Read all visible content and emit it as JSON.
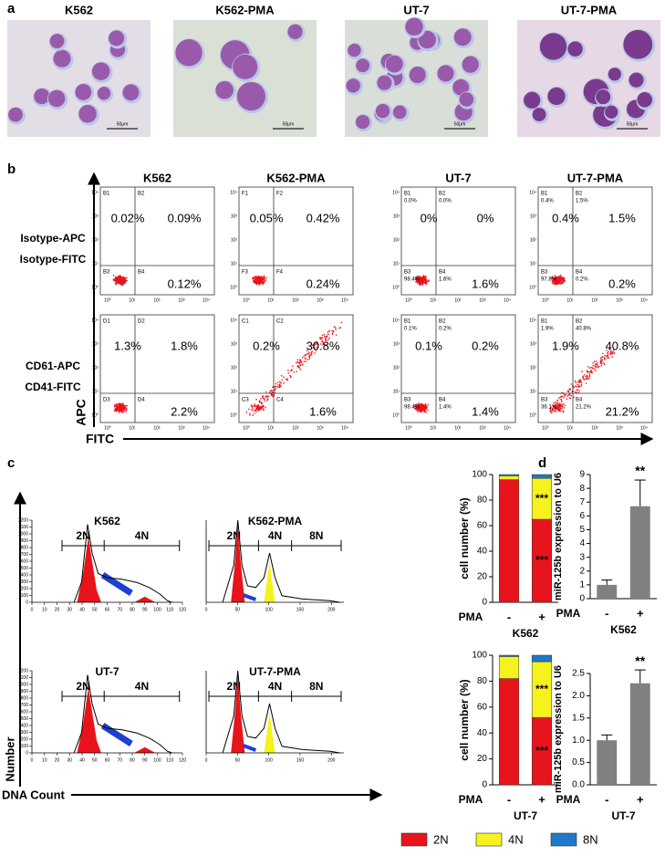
{
  "panel_labels": [
    "a",
    "b",
    "c",
    "d"
  ],
  "micrographs": {
    "titles": [
      "K562",
      "K562-PMA",
      "UT-7",
      "UT-7-PMA"
    ],
    "scale_bar": "50μm"
  },
  "flow": {
    "columns": [
      "K562",
      "K562-PMA",
      "UT-7",
      "UT-7-PMA"
    ],
    "y_axis": "APC",
    "x_axis": "FITC",
    "axis_ticks": [
      "10⁰",
      "10¹",
      "10²",
      "10³",
      "10⁴"
    ],
    "rows": [
      {
        "labels": [
          "Isotype-APC",
          "Isotype-FITC"
        ],
        "plots": [
          {
            "quadrants": [
              "B1",
              "B2",
              "B3",
              "B4"
            ],
            "percents": [
              "0.02%",
              "0.09%",
              "0.12%"
            ]
          },
          {
            "quadrants": [
              "F1",
              "F2",
              "F3",
              "F4"
            ],
            "percents": [
              "0.05%",
              "0.42%",
              "0.24%"
            ]
          },
          {
            "quadrants": [
              "B1",
              "B2",
              "B3",
              "B4"
            ],
            "quadrant_percents": [
              "0.0%",
              "0.0%",
              "98.4%",
              "1.6%"
            ],
            "percents": [
              "0%",
              "0%",
              "1.6%"
            ]
          },
          {
            "quadrants": [
              "B1",
              "B2",
              "B3",
              "B4"
            ],
            "quadrant_percents": [
              "0.4%",
              "1.5%",
              "97.8%",
              "0.2%"
            ],
            "percents": [
              "0.4%",
              "1.5%",
              "0.2%"
            ]
          }
        ]
      },
      {
        "labels": [
          "CD61-APC",
          "CD41-FITC"
        ],
        "plots": [
          {
            "quadrants": [
              "D1",
              "D2",
              "D3",
              "D4"
            ],
            "percents": [
              "1.3%",
              "1.8%",
              "2.2%"
            ]
          },
          {
            "quadrants": [
              "C1",
              "C2",
              "C3",
              "C4"
            ],
            "percents": [
              "0.2%",
              "30.8%",
              "1.6%"
            ]
          },
          {
            "quadrants": [
              "B1",
              "B2",
              "B3",
              "B4"
            ],
            "quadrant_percents": [
              "0.1%",
              "0.2%",
              "98.4%",
              "1.4%"
            ],
            "percents": [
              "0.1%",
              "0.2%",
              "1.4%"
            ]
          },
          {
            "quadrants": [
              "B1",
              "B2",
              "B3",
              "B4"
            ],
            "quadrant_percents": [
              "1.9%",
              "40.8%",
              "36.1%",
              "21.2%"
            ],
            "percents": [
              "1.9%",
              "40.8%",
              "21.2%"
            ]
          }
        ]
      }
    ]
  },
  "cell_cycle": {
    "y_axis": "Number",
    "x_axis": "DNA Count",
    "histograms": [
      {
        "title": "K562",
        "ranges": [
          "2N",
          "4N"
        ],
        "xlim": [
          0,
          120
        ],
        "xticks": [
          0,
          10,
          20,
          30,
          40,
          50,
          60,
          70,
          80,
          90,
          100,
          110,
          120
        ],
        "ylim": [
          0,
          1200
        ],
        "yticks": [
          0,
          100,
          200,
          300,
          400,
          500,
          600,
          700,
          800,
          900,
          1000,
          1100,
          1200
        ]
      },
      {
        "title": "K562-PMA",
        "ranges": [
          "2N",
          "4N",
          "8N"
        ],
        "xlim": [
          0,
          220
        ],
        "xticks": [
          0,
          50,
          100,
          150,
          200
        ]
      },
      {
        "title": "UT-7",
        "ranges": [
          "2N",
          "4N"
        ],
        "xlim": [
          0,
          120
        ],
        "xticks": [
          0,
          10,
          20,
          30,
          40,
          50,
          60,
          70,
          80,
          90,
          100,
          110,
          120
        ],
        "ylim": [
          0,
          1200
        ],
        "yticks": [
          0,
          100,
          200,
          300,
          400,
          500,
          600,
          700,
          800,
          900,
          1000,
          1100,
          1200
        ]
      },
      {
        "title": "UT-7-PMA",
        "ranges": [
          "2N",
          "4N",
          "8N"
        ],
        "xlim": [
          0,
          220
        ],
        "xticks": [
          0,
          50,
          100,
          150,
          200
        ]
      }
    ]
  },
  "chart_data": [
    {
      "type": "stacked_bar",
      "ylabel": "cell number (%)",
      "xlabel": "PMA",
      "subtitle": "K562",
      "categories": [
        "-",
        "+"
      ],
      "ylim": [
        0,
        100
      ],
      "yticks": [
        0,
        20,
        40,
        60,
        80,
        100
      ],
      "series": [
        {
          "name": "2N",
          "color": "#e8141b",
          "values": [
            96,
            65
          ]
        },
        {
          "name": "4N",
          "color": "#f5f21e",
          "values": [
            3,
            32
          ]
        },
        {
          "name": "8N",
          "color": "#1f78c8",
          "values": [
            1,
            3
          ]
        }
      ],
      "annotations": [
        "***",
        "***"
      ]
    },
    {
      "type": "stacked_bar",
      "ylabel": "cell number (%)",
      "xlabel": "PMA",
      "subtitle": "UT-7",
      "categories": [
        "-",
        "+"
      ],
      "ylim": [
        0,
        100
      ],
      "yticks": [
        0,
        20,
        40,
        60,
        80,
        100
      ],
      "series": [
        {
          "name": "2N",
          "color": "#e8141b",
          "values": [
            82,
            52
          ]
        },
        {
          "name": "4N",
          "color": "#f5f21e",
          "values": [
            17,
            43
          ]
        },
        {
          "name": "8N",
          "color": "#1f78c8",
          "values": [
            1,
            5
          ]
        }
      ],
      "annotations": [
        "***",
        "***"
      ]
    },
    {
      "type": "bar",
      "ylabel": "miR-125b expression to U6",
      "xlabel": "PMA",
      "subtitle": "K562",
      "categories": [
        "-",
        "+"
      ],
      "values": [
        1.0,
        6.7
      ],
      "errors": [
        0.35,
        1.9
      ],
      "color": "#808080",
      "ylim": [
        0,
        9
      ],
      "yticks": [
        0,
        1,
        2,
        3,
        4,
        5,
        6,
        7,
        8,
        9
      ],
      "annotations": [
        "**"
      ]
    },
    {
      "type": "bar",
      "ylabel": "miR-125b expression to U6",
      "xlabel": "PMA",
      "subtitle": "UT-7",
      "categories": [
        "-",
        "+"
      ],
      "values": [
        1.0,
        2.28
      ],
      "errors": [
        0.12,
        0.3
      ],
      "color": "#808080",
      "ylim": [
        0,
        2.5
      ],
      "yticks": [
        {
          "value": 0,
          "label": "0.0"
        },
        0.5,
        {
          "value": 1,
          "label": "1.0"
        },
        1.5,
        {
          "value": 2,
          "label": "2.0"
        },
        2.5
      ],
      "annotations": [
        "**"
      ]
    }
  ]
}
